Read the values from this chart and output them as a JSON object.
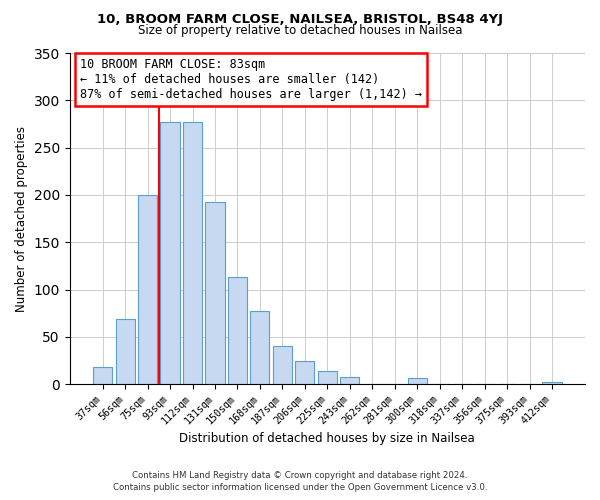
{
  "title": "10, BROOM FARM CLOSE, NAILSEA, BRISTOL, BS48 4YJ",
  "subtitle": "Size of property relative to detached houses in Nailsea",
  "xlabel": "Distribution of detached houses by size in Nailsea",
  "ylabel": "Number of detached properties",
  "bar_labels": [
    "37sqm",
    "56sqm",
    "75sqm",
    "93sqm",
    "112sqm",
    "131sqm",
    "150sqm",
    "168sqm",
    "187sqm",
    "206sqm",
    "225sqm",
    "243sqm",
    "262sqm",
    "281sqm",
    "300sqm",
    "318sqm",
    "337sqm",
    "356sqm",
    "375sqm",
    "393sqm",
    "412sqm"
  ],
  "bar_values": [
    18,
    69,
    200,
    277,
    277,
    193,
    113,
    77,
    40,
    25,
    14,
    8,
    0,
    0,
    7,
    0,
    0,
    0,
    0,
    0,
    2
  ],
  "bar_color": "#c6d9f1",
  "bar_edge_color": "#5a9ec9",
  "vline_x": 2.5,
  "vline_color": "red",
  "annotation_title": "10 BROOM FARM CLOSE: 83sqm",
  "annotation_line1": "← 11% of detached houses are smaller (142)",
  "annotation_line2": "87% of semi-detached houses are larger (1,142) →",
  "annotation_box_color": "white",
  "annotation_box_edge": "red",
  "ylim": [
    0,
    350
  ],
  "yticks": [
    0,
    50,
    100,
    150,
    200,
    250,
    300,
    350
  ],
  "footer1": "Contains HM Land Registry data © Crown copyright and database right 2024.",
  "footer2": "Contains public sector information licensed under the Open Government Licence v3.0."
}
